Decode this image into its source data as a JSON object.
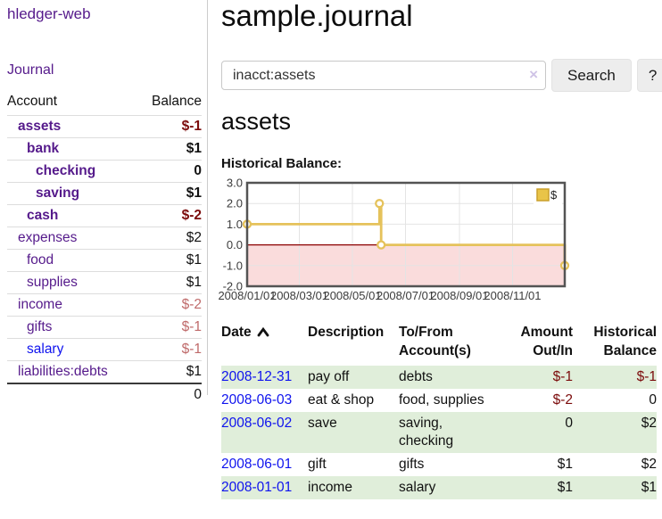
{
  "app": {
    "title": "hledger-web"
  },
  "colors": {
    "accent_purple": "#551a8b",
    "link_blue": "#0f13ee",
    "neg_strong": "#7b0b0b",
    "neg_muted": "#bf6a6a",
    "row_green": "#e0eeda",
    "chart_line": "#e5c25b",
    "chart_area_negative": "#fadcdc",
    "zero_line": "#8b0000",
    "grid": "#e4e4e4",
    "chart_border": "#545454"
  },
  "sidebar": {
    "journal_label": "Journal",
    "table": {
      "headers": [
        "Account",
        "Balance"
      ],
      "rows": [
        {
          "account": "assets",
          "balance": "$-1",
          "level": 1,
          "bold": true,
          "balance_style": "neg-strong",
          "link_style": "purple"
        },
        {
          "account": "bank",
          "balance": "$1",
          "level": 2,
          "bold": true,
          "balance_style": "pos",
          "link_style": "purple"
        },
        {
          "account": "checking",
          "balance": "0",
          "level": 3,
          "bold": true,
          "balance_style": "pos",
          "link_style": "purple"
        },
        {
          "account": "saving",
          "balance": "$1",
          "level": 3,
          "bold": true,
          "balance_style": "pos",
          "link_style": "purple"
        },
        {
          "account": "cash",
          "balance": "$-2",
          "level": 2,
          "bold": true,
          "balance_style": "neg-strong",
          "link_style": "purple"
        },
        {
          "account": "expenses",
          "balance": "$2",
          "level": 1,
          "bold": false,
          "balance_style": "pos",
          "link_style": "purple"
        },
        {
          "account": "food",
          "balance": "$1",
          "level": 2,
          "bold": false,
          "balance_style": "pos",
          "link_style": "purple"
        },
        {
          "account": "supplies",
          "balance": "$1",
          "level": 2,
          "bold": false,
          "balance_style": "pos",
          "link_style": "purple"
        },
        {
          "account": "income",
          "balance": "$-2",
          "level": 1,
          "bold": false,
          "balance_style": "neg-muted",
          "link_style": "purple"
        },
        {
          "account": "gifts",
          "balance": "$-1",
          "level": 2,
          "bold": false,
          "balance_style": "neg-muted",
          "link_style": "purple"
        },
        {
          "account": "salary",
          "balance": "$-1",
          "level": 2,
          "bold": false,
          "balance_style": "neg-muted",
          "link_style": "blue"
        },
        {
          "account": "liabilities:debts",
          "balance": "$1",
          "level": 1,
          "bold": false,
          "balance_style": "pos",
          "link_style": "purple"
        }
      ],
      "total": "0"
    }
  },
  "main": {
    "title": "sample.journal",
    "search": {
      "value": "inacct:assets",
      "clear_icon": "×",
      "button_label": "Search",
      "help_label": "?"
    },
    "account_heading": "assets",
    "table": {
      "headers": [
        {
          "line1": "Date",
          "line2": ""
        },
        {
          "line1": "Description",
          "line2": ""
        },
        {
          "line1": "To/From",
          "line2": "Account(s)"
        },
        {
          "line1": "Amount",
          "line2": "Out/In"
        },
        {
          "line1": "Historical",
          "line2": "Balance"
        }
      ],
      "rows": [
        {
          "date": "2008-12-31",
          "description": "pay off",
          "to_from": "debts",
          "amount": "$-1",
          "balance": "$-1"
        },
        {
          "date": "2008-06-03",
          "description": "eat & shop",
          "to_from": "food, supplies",
          "amount": "$-2",
          "balance": "0"
        },
        {
          "date": "2008-06-02",
          "description": "save",
          "to_from": "saving, checking",
          "amount": "0",
          "balance": "$2"
        },
        {
          "date": "2008-06-01",
          "description": "gift",
          "to_from": "gifts",
          "amount": "$1",
          "balance": "$2"
        },
        {
          "date": "2008-01-01",
          "description": "income",
          "to_from": "salary",
          "amount": "$1",
          "balance": "$1"
        }
      ]
    }
  },
  "chart_data": {
    "type": "line",
    "title": "Historical Balance:",
    "series": [
      {
        "name": "$",
        "color": "#e5c25b",
        "step": true,
        "points": [
          {
            "x": "2008-01-01",
            "y": 1
          },
          {
            "x": "2008-06-01",
            "y": 2
          },
          {
            "x": "2008-06-03",
            "y": 0
          },
          {
            "x": "2008-12-31",
            "y": -1
          }
        ]
      }
    ],
    "xrange": [
      "2008-01-01",
      "2008-12-31"
    ],
    "ylim": [
      -2,
      3
    ],
    "yticks": [
      {
        "value": 3,
        "label": "3.0"
      },
      {
        "value": 2,
        "label": "2.0"
      },
      {
        "value": 1,
        "label": "1.0"
      },
      {
        "value": 0,
        "label": "0.0"
      },
      {
        "value": -1,
        "label": "-1.0"
      },
      {
        "value": -2,
        "label": "-2.0"
      }
    ],
    "xticks": [
      {
        "date": "2008-01-01",
        "label": "2008/01/01"
      },
      {
        "date": "2008-03-01",
        "label": "2008/03/01"
      },
      {
        "date": "2008-05-01",
        "label": "2008/05/01"
      },
      {
        "date": "2008-07-01",
        "label": "2008/07/01"
      },
      {
        "date": "2008-09-01",
        "label": "2008/09/01"
      },
      {
        "date": "2008-11-01",
        "label": "2008/11/01"
      }
    ],
    "legend_position": "top-right",
    "grid": true,
    "negative_region_shaded": true
  }
}
